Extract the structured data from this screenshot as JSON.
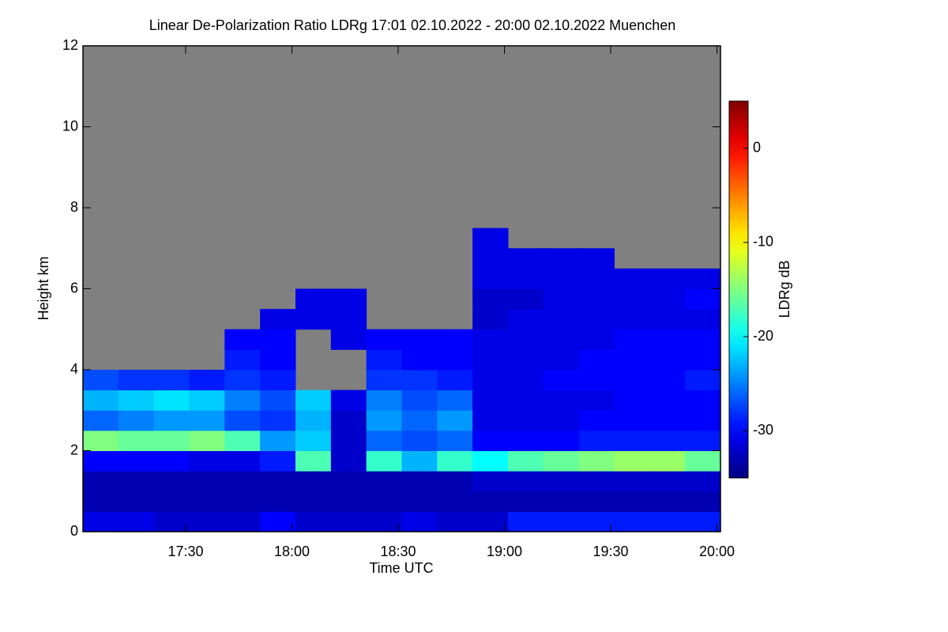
{
  "chart_data": {
    "type": "heatmap",
    "title": "Linear De-Polarization Ratio LDRg   17:01 02.10.2022 - 20:00 02.10.2022 Muenchen",
    "x_label": "Time UTC",
    "y_label": "Height km",
    "colorbar_label": "LDRg dB",
    "xlim": [
      1021,
      1201
    ],
    "xticks": [
      {
        "value": 1050,
        "label": "17:30"
      },
      {
        "value": 1080,
        "label": "18:00"
      },
      {
        "value": 1110,
        "label": "18:30"
      },
      {
        "value": 1140,
        "label": "19:00"
      },
      {
        "value": 1170,
        "label": "19:30"
      },
      {
        "value": 1200,
        "label": "20:00"
      }
    ],
    "ylim": [
      0,
      12
    ],
    "yticks": [
      0,
      2,
      4,
      6,
      8,
      10,
      12
    ],
    "clim": [
      -35,
      5
    ],
    "cticks": [
      -30,
      -20,
      -10,
      0
    ],
    "colormap": "jet",
    "missing_color": "#808080",
    "x": [
      1021,
      1031,
      1041,
      1051,
      1061,
      1071,
      1081,
      1091,
      1101,
      1111,
      1121,
      1131,
      1141,
      1151,
      1161,
      1171,
      1181,
      1191
    ],
    "y": [
      0,
      0.5,
      1,
      1.5,
      2,
      2.5,
      3,
      3.5,
      4,
      4.5,
      5,
      5.5,
      6,
      6.5,
      7,
      7.5,
      8,
      8.5,
      9,
      9.5,
      10,
      10.5,
      11,
      11.5
    ],
    "z": [
      [
        -31,
        -33,
        -33,
        -30,
        -15,
        -26,
        -23,
        -27,
        null,
        null,
        null,
        null,
        null,
        null,
        null,
        null,
        null,
        null,
        null,
        null,
        null,
        null,
        null,
        null
      ],
      [
        -31,
        -33,
        -33,
        -30,
        -16,
        -25,
        -22,
        -28,
        null,
        null,
        null,
        null,
        null,
        null,
        null,
        null,
        null,
        null,
        null,
        null,
        null,
        null,
        null,
        null
      ],
      [
        -32,
        -33,
        -33,
        -30,
        -16,
        -24,
        -21,
        -28,
        null,
        null,
        null,
        null,
        null,
        null,
        null,
        null,
        null,
        null,
        null,
        null,
        null,
        null,
        null,
        null
      ],
      [
        -32,
        -33,
        -33,
        -31,
        -15,
        -24,
        -22,
        -29,
        null,
        null,
        null,
        null,
        null,
        null,
        null,
        null,
        null,
        null,
        null,
        null,
        null,
        null,
        null,
        null
      ],
      [
        -32,
        -33,
        -33,
        -31,
        -17,
        -27,
        -25,
        -28,
        -29,
        -30,
        null,
        null,
        null,
        null,
        null,
        null,
        null,
        null,
        null,
        null,
        null,
        null,
        null,
        null
      ],
      [
        -30,
        -33,
        -33,
        -29,
        -24,
        -28,
        -27,
        -29,
        -30,
        -30,
        -31,
        null,
        null,
        null,
        null,
        null,
        null,
        null,
        null,
        null,
        null,
        null,
        null,
        null
      ],
      [
        -32,
        -33,
        -33,
        -17,
        -22,
        -23,
        -22,
        null,
        null,
        null,
        -31,
        -31,
        null,
        null,
        null,
        null,
        null,
        null,
        null,
        null,
        null,
        null,
        null,
        null
      ],
      [
        -32,
        -33,
        -33,
        -32,
        -32,
        -32,
        -31,
        null,
        null,
        -31,
        -31,
        -31,
        null,
        null,
        null,
        null,
        null,
        null,
        null,
        null,
        null,
        null,
        null,
        null
      ],
      [
        -32,
        -33,
        -33,
        -18,
        -26,
        -24,
        -25,
        -28,
        -29,
        -30,
        null,
        null,
        null,
        null,
        null,
        null,
        null,
        null,
        null,
        null,
        null,
        null,
        null,
        null
      ],
      [
        -31,
        -33,
        -33,
        -23,
        -27,
        -26,
        -27,
        -28,
        -30,
        -30,
        null,
        null,
        null,
        null,
        null,
        null,
        null,
        null,
        null,
        null,
        null,
        null,
        null,
        null
      ],
      [
        -32,
        -33,
        -33,
        -18,
        -26,
        -24,
        -26,
        -29,
        -30,
        -30,
        null,
        null,
        null,
        null,
        null,
        null,
        null,
        null,
        null,
        null,
        null,
        null,
        null,
        null
      ],
      [
        -32,
        -33,
        -32,
        -20,
        -30,
        -31,
        -31,
        -31,
        -31,
        -31,
        -32,
        -32,
        -31,
        -31,
        -31,
        null,
        null,
        null,
        null,
        null,
        null,
        null,
        null,
        null
      ],
      [
        -29,
        -33,
        -32,
        -17,
        -30,
        -31,
        -31,
        -31,
        -31,
        -31,
        -31,
        -32,
        -31,
        -31,
        null,
        null,
        null,
        null,
        null,
        null,
        null,
        null,
        null,
        null
      ],
      [
        -29,
        -33,
        -32,
        -16,
        -30,
        -31,
        -31,
        -30,
        -31,
        -31,
        -31,
        -31,
        -31,
        -31,
        null,
        null,
        null,
        null,
        null,
        null,
        null,
        null,
        null,
        null
      ],
      [
        -29,
        -33,
        -32,
        -15,
        -29,
        -30,
        -31,
        -30,
        -30,
        -31,
        -31,
        -31,
        -31,
        -31,
        null,
        null,
        null,
        null,
        null,
        null,
        null,
        null,
        null,
        null
      ],
      [
        -29,
        -33,
        -32,
        -14,
        -29,
        -30,
        -30,
        -30,
        -30,
        -30,
        -31,
        -31,
        -31,
        null,
        null,
        null,
        null,
        null,
        null,
        null,
        null,
        null,
        null,
        null
      ],
      [
        -29,
        -33,
        -32,
        -14,
        -29,
        -30,
        -30,
        -30,
        -30,
        -30,
        -31,
        -31,
        -31,
        null,
        null,
        null,
        null,
        null,
        null,
        null,
        null,
        null,
        null,
        null
      ],
      [
        -29,
        -33,
        -32,
        -16,
        -29,
        -30,
        -30,
        -29,
        -30,
        -30,
        -31,
        -30,
        -31,
        null,
        null,
        null,
        null,
        null,
        null,
        null,
        null,
        null,
        null,
        null
      ]
    ]
  }
}
